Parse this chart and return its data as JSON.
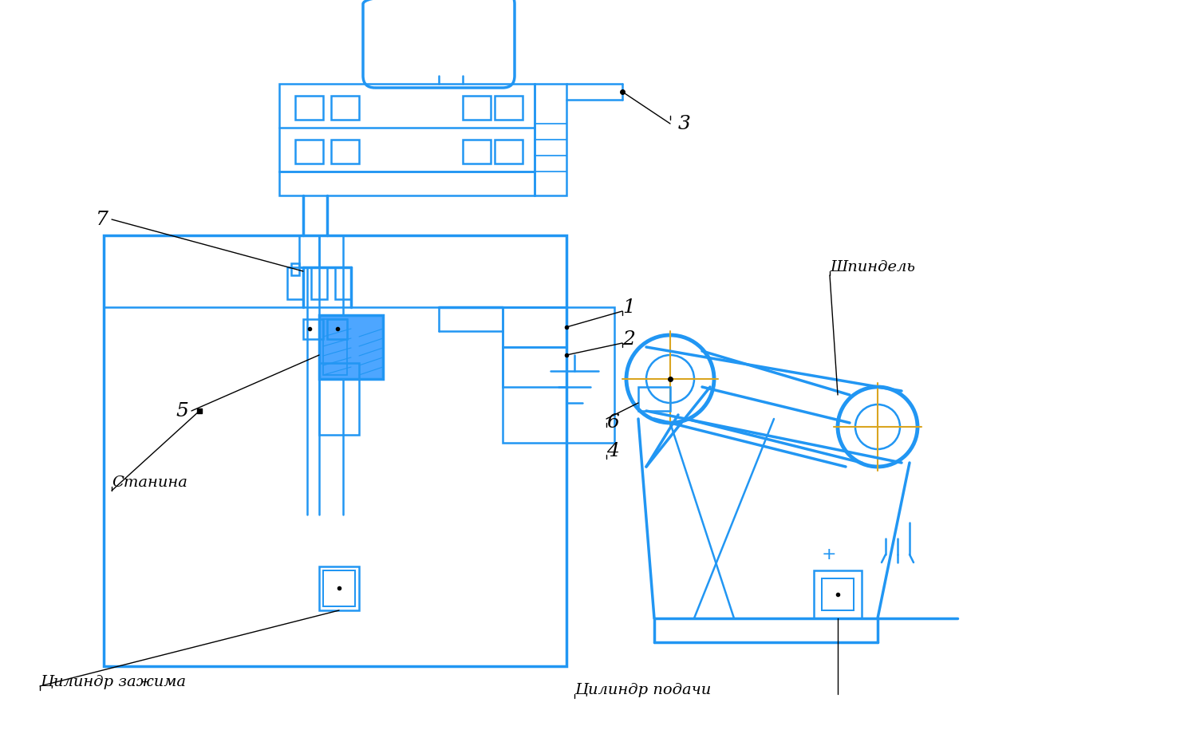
{
  "blue": "#2196F3",
  "black": "#000000",
  "gold": "#DAA520",
  "bg": "#FFFFFF",
  "lw": 1.8,
  "tlw": 2.5,
  "labels": {
    "stanina": "Станина",
    "cyl_zaj": "Цилиндр зажима",
    "cyl_pod": "Цилиндр подачи",
    "shpindel": "Шпиндель"
  }
}
